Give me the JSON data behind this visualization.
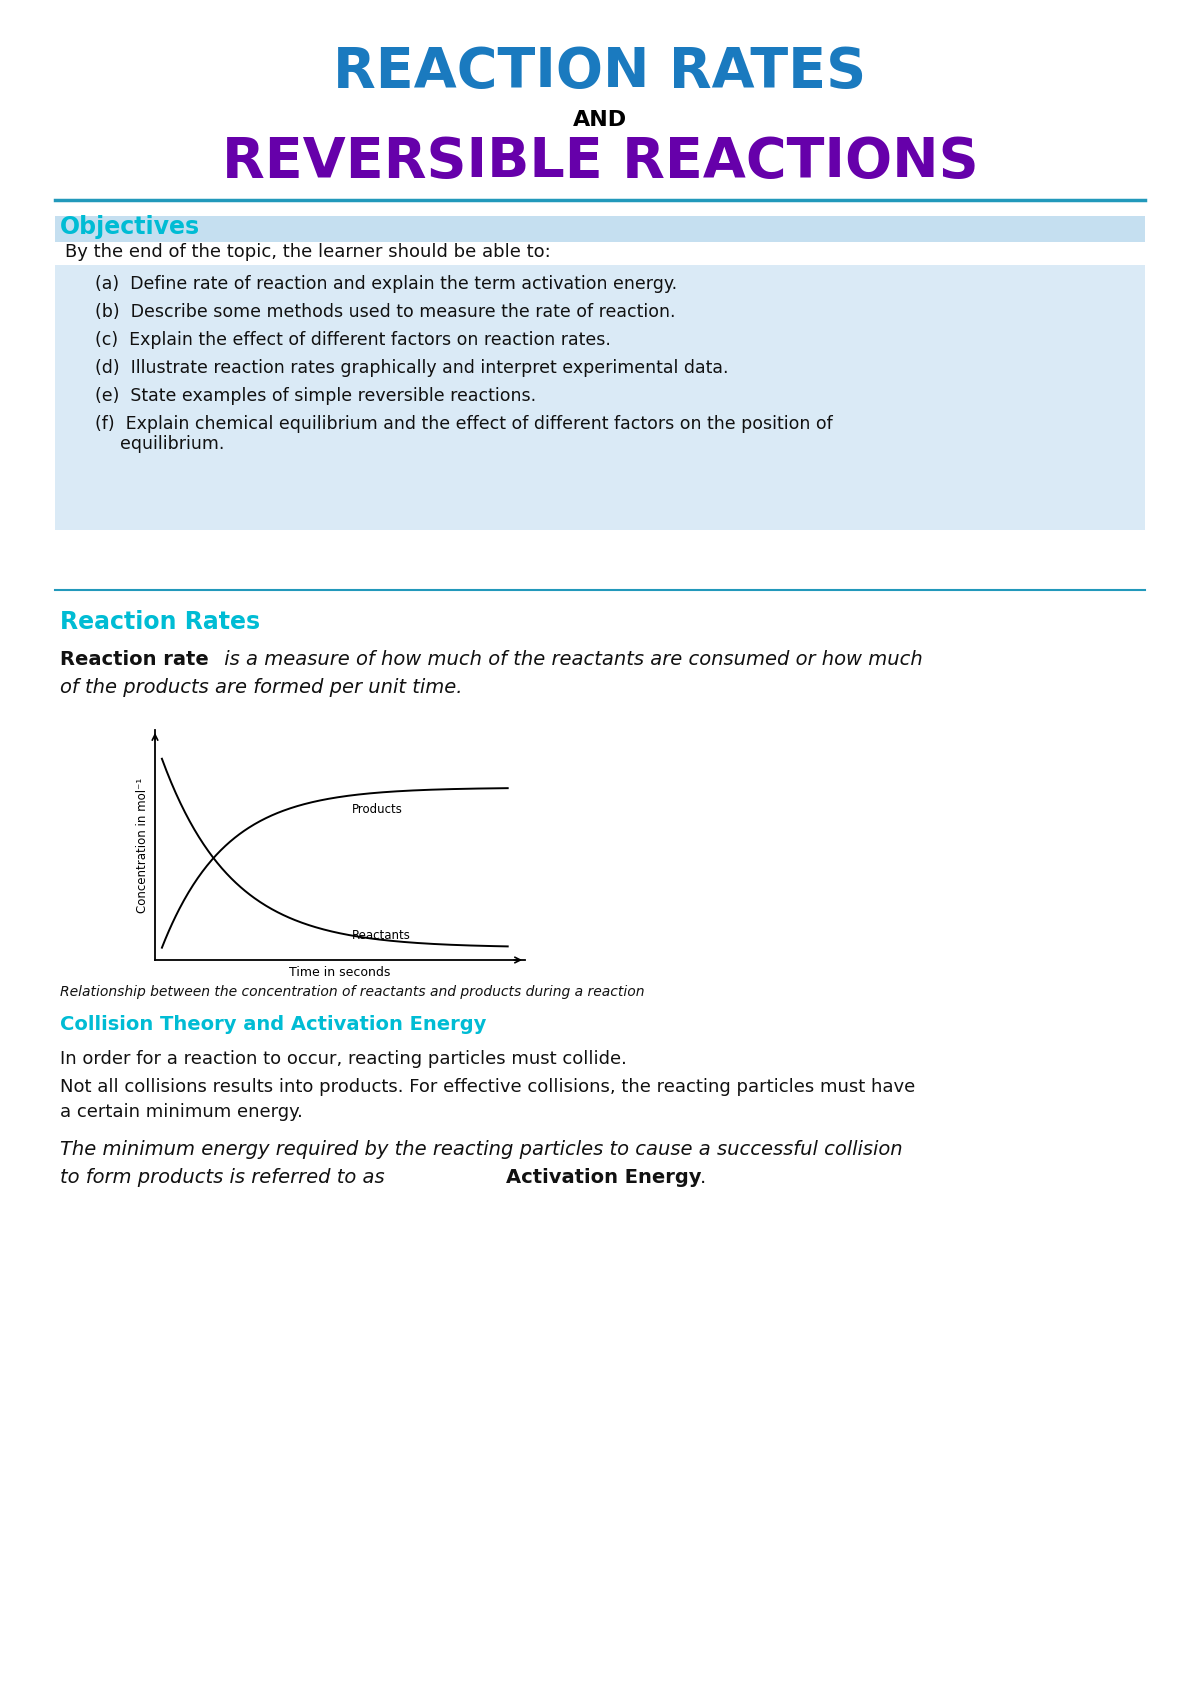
{
  "title_line1": "REACTION RATES",
  "title_line2": "AND",
  "title_line3": "REVERSIBLE REACTIONS",
  "title_line1_color": "#1a7abf",
  "title_line2_color": "#000000",
  "title_line3_color": "#6600aa",
  "section1_title": "Objectives",
  "section1_title_color": "#00bcd4",
  "objectives_header": "By the end of the topic, the learner should be able to:",
  "section2_title": "Reaction Rates",
  "section2_title_color": "#00bcd4",
  "section3_title": "Collision Theory and Activation Energy",
  "section3_title_color": "#00bcd4",
  "graph_ylabel": "Concentration in mol⁻¹",
  "graph_xlabel": "Time in seconds",
  "graph_caption": "Relationship between the concentration of reactants and products during a reaction",
  "bg_color": "#ffffff",
  "objectives_bg": "#daeaf6",
  "objectives_header_bg": "#c5dff0",
  "divider_color": "#2299bb",
  "font_color": "#111111"
}
